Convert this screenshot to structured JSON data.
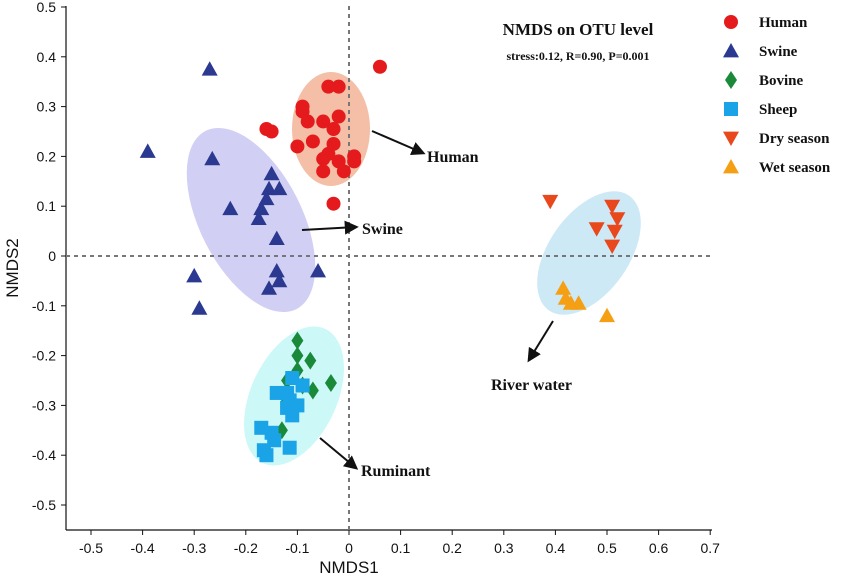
{
  "chart_data": {
    "type": "scatter",
    "title": "NMDS on OTU level",
    "subtitle": "stress:0.12, R=0.90, P=0.001",
    "xlabel": "NMDS1",
    "ylabel": "NMDS2",
    "xlim": [
      -0.55,
      0.7
    ],
    "ylim": [
      -0.55,
      0.5
    ],
    "xticks": [
      "-0.5",
      "-0.4",
      "-0.3",
      "-0.2",
      "-0.1",
      "0",
      "0.1",
      "0.2",
      "0.3",
      "0.4",
      "0.5",
      "0.6",
      "0.7"
    ],
    "yticks": [
      "0.5",
      "0.4",
      "0.3",
      "0.2",
      "0.1",
      "0",
      "-0.1",
      "-0.2",
      "-0.3",
      "-0.4",
      "-0.5"
    ],
    "grid": false,
    "reference_lines": "dashed lines at x=0 and y=0",
    "legend_position": "right",
    "series": [
      {
        "name": "Human",
        "marker": "circle",
        "color": "#e41a1c",
        "points": [
          [
            0.06,
            0.38
          ],
          [
            -0.04,
            0.34
          ],
          [
            -0.02,
            0.34
          ],
          [
            -0.09,
            0.3
          ],
          [
            -0.09,
            0.29
          ],
          [
            -0.05,
            0.27
          ],
          [
            -0.02,
            0.28
          ],
          [
            -0.08,
            0.27
          ],
          [
            -0.16,
            0.255
          ],
          [
            -0.15,
            0.25
          ],
          [
            -0.03,
            0.255
          ],
          [
            -0.07,
            0.23
          ],
          [
            -0.03,
            0.225
          ],
          [
            -0.1,
            0.22
          ],
          [
            -0.04,
            0.205
          ],
          [
            -0.05,
            0.195
          ],
          [
            0.01,
            0.2
          ],
          [
            -0.02,
            0.19
          ],
          [
            -0.05,
            0.17
          ],
          [
            -0.01,
            0.17
          ],
          [
            -0.03,
            0.105
          ],
          [
            0.01,
            0.19
          ]
        ]
      },
      {
        "name": "Swine",
        "marker": "triangle",
        "color": "#2b3990",
        "points": [
          [
            -0.27,
            0.375
          ],
          [
            -0.39,
            0.21
          ],
          [
            -0.265,
            0.195
          ],
          [
            -0.15,
            0.165
          ],
          [
            -0.155,
            0.135
          ],
          [
            -0.135,
            0.135
          ],
          [
            -0.16,
            0.115
          ],
          [
            -0.23,
            0.095
          ],
          [
            -0.17,
            0.095
          ],
          [
            -0.175,
            0.075
          ],
          [
            -0.14,
            0.035
          ],
          [
            -0.3,
            -0.04
          ],
          [
            -0.14,
            -0.03
          ],
          [
            -0.06,
            -0.03
          ],
          [
            -0.135,
            -0.05
          ],
          [
            -0.155,
            -0.065
          ],
          [
            -0.29,
            -0.105
          ]
        ]
      },
      {
        "name": "Bovine",
        "marker": "diamond",
        "color": "#1a8a3a",
        "points": [
          [
            -0.1,
            -0.17
          ],
          [
            -0.1,
            -0.2
          ],
          [
            -0.075,
            -0.21
          ],
          [
            -0.1,
            -0.23
          ],
          [
            -0.12,
            -0.25
          ],
          [
            -0.09,
            -0.26
          ],
          [
            -0.07,
            -0.27
          ],
          [
            -0.035,
            -0.255
          ],
          [
            -0.12,
            -0.29
          ],
          [
            -0.13,
            -0.35
          ]
        ]
      },
      {
        "name": "Sheep",
        "marker": "square",
        "color": "#1ba3e8",
        "points": [
          [
            -0.11,
            -0.245
          ],
          [
            -0.09,
            -0.26
          ],
          [
            -0.14,
            -0.275
          ],
          [
            -0.12,
            -0.275
          ],
          [
            -0.115,
            -0.29
          ],
          [
            -0.1,
            -0.3
          ],
          [
            -0.12,
            -0.305
          ],
          [
            -0.11,
            -0.32
          ],
          [
            -0.17,
            -0.345
          ],
          [
            -0.15,
            -0.355
          ],
          [
            -0.145,
            -0.37
          ],
          [
            -0.115,
            -0.385
          ],
          [
            -0.165,
            -0.39
          ],
          [
            -0.16,
            -0.4
          ]
        ]
      },
      {
        "name": "Dry season",
        "marker": "triangle-down",
        "color": "#e8481c",
        "points": [
          [
            0.39,
            0.11
          ],
          [
            0.51,
            0.1
          ],
          [
            0.52,
            0.075
          ],
          [
            0.48,
            0.055
          ],
          [
            0.515,
            0.05
          ],
          [
            0.51,
            0.02
          ]
        ]
      },
      {
        "name": "Wet season",
        "marker": "triangle",
        "color": "#f5a014",
        "points": [
          [
            0.415,
            -0.065
          ],
          [
            0.42,
            -0.085
          ],
          [
            0.43,
            -0.095
          ],
          [
            0.445,
            -0.095
          ],
          [
            0.5,
            -0.12
          ]
        ]
      }
    ],
    "annotations": [
      "Human",
      "Swine",
      "Ruminant",
      "River water"
    ]
  }
}
